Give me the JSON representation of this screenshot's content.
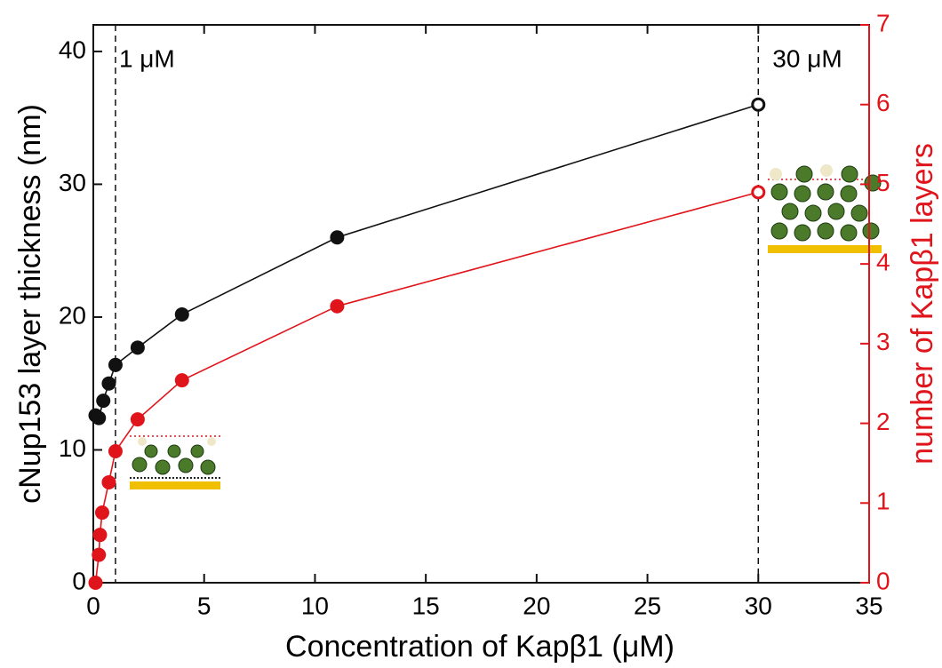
{
  "chart_data": {
    "type": "line",
    "xlabel": "Concentration of Kapβ1 (μM)",
    "ylabel": "cNup153 layer thickness (nm)",
    "y2label": "number of Kapβ1 layers",
    "xlim": [
      0,
      35
    ],
    "xticks": [
      0,
      5,
      10,
      15,
      20,
      25,
      30,
      35
    ],
    "ylim": [
      0,
      42
    ],
    "yticks": [
      0,
      10,
      20,
      30,
      40
    ],
    "y2lim": [
      0,
      7
    ],
    "y2ticks": [
      0,
      1,
      2,
      3,
      4,
      5,
      6,
      7
    ],
    "y2color": "#e0151b",
    "last_point_open": true,
    "vlines": [
      {
        "x": 1,
        "label": "1 μM"
      },
      {
        "x": 30,
        "label": "30 μM"
      }
    ],
    "series": [
      {
        "color": "#111111",
        "axis": "y",
        "x": [
          0.1,
          0.25,
          0.45,
          0.7,
          1,
          2,
          4,
          11,
          30
        ],
        "values": [
          12.6,
          12.4,
          13.7,
          15.0,
          16.4,
          17.7,
          20.2,
          26.0,
          36.0
        ]
      },
      {
        "color": "#e0151b",
        "axis": "y2",
        "x": [
          0.1,
          0.25,
          0.3,
          0.4,
          0.7,
          1,
          2,
          4,
          11,
          30
        ],
        "values": [
          0,
          0.35,
          0.6,
          0.88,
          1.26,
          1.65,
          2.05,
          2.54,
          3.47,
          4.9
        ]
      }
    ]
  }
}
